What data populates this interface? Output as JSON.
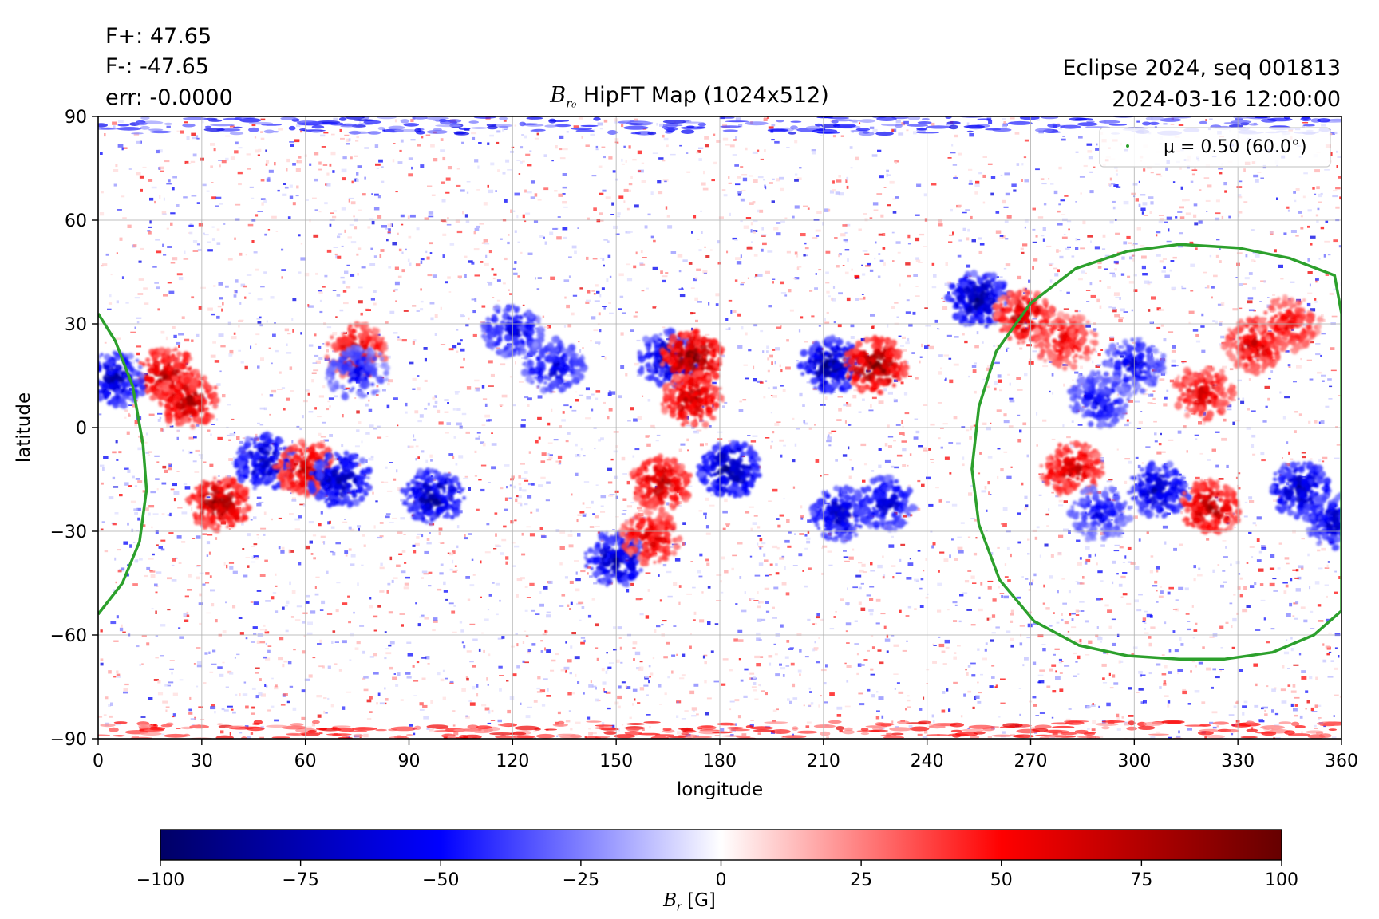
{
  "stats": {
    "fplus": "F+: 47.65",
    "fminus": "F-: -47.65",
    "err": "err: -0.0000"
  },
  "header_right": {
    "line1": "Eclipse 2024, seq 001813",
    "line2": "2024-03-16 12:00:00"
  },
  "title": {
    "symbol": "B",
    "subscript": "r₀",
    "text": " HipFT Map (1024x512)"
  },
  "legend": {
    "label": "μ = 0.50 (60.0°)",
    "color": "#2ca02c"
  },
  "colorbar": {
    "label_symbol": "B",
    "label_sub": "r",
    "label_unit": " [G]",
    "ticks": [
      "−100",
      "−75",
      "−50",
      "−25",
      "0",
      "25",
      "50",
      "75",
      "100"
    ],
    "range": [
      -100,
      100
    ],
    "colormap": [
      "#000066",
      "#0000ff",
      "#ffffff",
      "#ff0000",
      "#660000"
    ]
  },
  "chart_data": {
    "type": "heatmap",
    "xlabel": "longitude",
    "ylabel": "latitude",
    "xlim": [
      0,
      360
    ],
    "ylim": [
      -90,
      90
    ],
    "xticks": [
      0,
      30,
      60,
      90,
      120,
      150,
      180,
      210,
      240,
      270,
      300,
      330,
      360
    ],
    "yticks": [
      -90,
      -60,
      -30,
      0,
      30,
      60,
      90
    ],
    "grid": true,
    "legend_position": "top-right",
    "colors": {
      "positive": "#cc0000",
      "negative": "#0000aa",
      "contour": "#2ca02c"
    },
    "contour_mu_050": {
      "points": [
        [
          313,
          53
        ],
        [
          330,
          52
        ],
        [
          345,
          49
        ],
        [
          358,
          44
        ],
        [
          360,
          33
        ],
        [
          360,
          -53
        ],
        [
          352,
          -60
        ],
        [
          340,
          -65
        ],
        [
          326,
          -67
        ],
        [
          313,
          -67
        ],
        [
          298,
          -66
        ],
        [
          284,
          -63
        ],
        [
          271,
          -56
        ],
        [
          261,
          -44
        ],
        [
          255,
          -28
        ],
        [
          253,
          -12
        ],
        [
          255,
          6
        ],
        [
          260,
          22
        ],
        [
          270,
          36
        ],
        [
          283,
          46
        ],
        [
          298,
          51
        ],
        [
          313,
          53
        ]
      ],
      "wrap_points": [
        [
          0,
          33
        ],
        [
          5,
          25
        ],
        [
          10,
          12
        ],
        [
          13,
          -5
        ],
        [
          14,
          -18
        ],
        [
          12,
          -33
        ],
        [
          7,
          -45
        ],
        [
          0,
          -54
        ]
      ]
    },
    "active_regions": [
      {
        "lon": 35,
        "lat": -22,
        "polarity": "positive",
        "strength": 90
      },
      {
        "lon": 48,
        "lat": -10,
        "polarity": "negative",
        "strength": 85
      },
      {
        "lon": 60,
        "lat": -12,
        "polarity": "positive",
        "strength": 75
      },
      {
        "lon": 70,
        "lat": -15,
        "polarity": "negative",
        "strength": 90
      },
      {
        "lon": 20,
        "lat": 15,
        "polarity": "positive",
        "strength": 85
      },
      {
        "lon": 26,
        "lat": 8,
        "polarity": "positive",
        "strength": 80
      },
      {
        "lon": 5,
        "lat": 14,
        "polarity": "negative",
        "strength": 80
      },
      {
        "lon": 75,
        "lat": 22,
        "polarity": "positive",
        "strength": 75
      },
      {
        "lon": 75,
        "lat": 16,
        "polarity": "negative",
        "strength": 60
      },
      {
        "lon": 97,
        "lat": -20,
        "polarity": "negative",
        "strength": 90
      },
      {
        "lon": 120,
        "lat": 28,
        "polarity": "negative",
        "strength": 70
      },
      {
        "lon": 132,
        "lat": 18,
        "polarity": "negative",
        "strength": 70
      },
      {
        "lon": 150,
        "lat": -38,
        "polarity": "negative",
        "strength": 85
      },
      {
        "lon": 160,
        "lat": -32,
        "polarity": "positive",
        "strength": 70
      },
      {
        "lon": 165,
        "lat": 20,
        "polarity": "negative",
        "strength": 85
      },
      {
        "lon": 172,
        "lat": 20,
        "polarity": "positive",
        "strength": 95
      },
      {
        "lon": 172,
        "lat": 8,
        "polarity": "positive",
        "strength": 80
      },
      {
        "lon": 163,
        "lat": -16,
        "polarity": "positive",
        "strength": 80
      },
      {
        "lon": 183,
        "lat": -12,
        "polarity": "negative",
        "strength": 95
      },
      {
        "lon": 212,
        "lat": 18,
        "polarity": "negative",
        "strength": 95
      },
      {
        "lon": 225,
        "lat": 18,
        "polarity": "positive",
        "strength": 95
      },
      {
        "lon": 215,
        "lat": -25,
        "polarity": "negative",
        "strength": 80
      },
      {
        "lon": 228,
        "lat": -22,
        "polarity": "negative",
        "strength": 75
      },
      {
        "lon": 255,
        "lat": 37,
        "polarity": "negative",
        "strength": 90
      },
      {
        "lon": 268,
        "lat": 32,
        "polarity": "positive",
        "strength": 80
      },
      {
        "lon": 300,
        "lat": 18,
        "polarity": "negative",
        "strength": 65
      },
      {
        "lon": 320,
        "lat": 10,
        "polarity": "positive",
        "strength": 70
      },
      {
        "lon": 335,
        "lat": 24,
        "polarity": "positive",
        "strength": 70
      },
      {
        "lon": 290,
        "lat": 8,
        "polarity": "negative",
        "strength": 65
      },
      {
        "lon": 282,
        "lat": -12,
        "polarity": "positive",
        "strength": 75
      },
      {
        "lon": 307,
        "lat": -18,
        "polarity": "negative",
        "strength": 80
      },
      {
        "lon": 322,
        "lat": -23,
        "polarity": "positive",
        "strength": 80
      },
      {
        "lon": 348,
        "lat": -18,
        "polarity": "negative",
        "strength": 85
      },
      {
        "lon": 358,
        "lat": -27,
        "polarity": "negative",
        "strength": 75
      },
      {
        "lon": 290,
        "lat": -25,
        "polarity": "negative",
        "strength": 60
      },
      {
        "lon": 280,
        "lat": 25,
        "polarity": "positive",
        "strength": 60
      },
      {
        "lon": 345,
        "lat": 30,
        "polarity": "positive",
        "strength": 60
      }
    ],
    "polar_bands": [
      {
        "lat_from": 85,
        "lat_to": 90,
        "polarity": "negative",
        "strength": 60
      },
      {
        "lat_from": -90,
        "lat_to": -85,
        "polarity": "positive",
        "strength": 60
      }
    ]
  }
}
